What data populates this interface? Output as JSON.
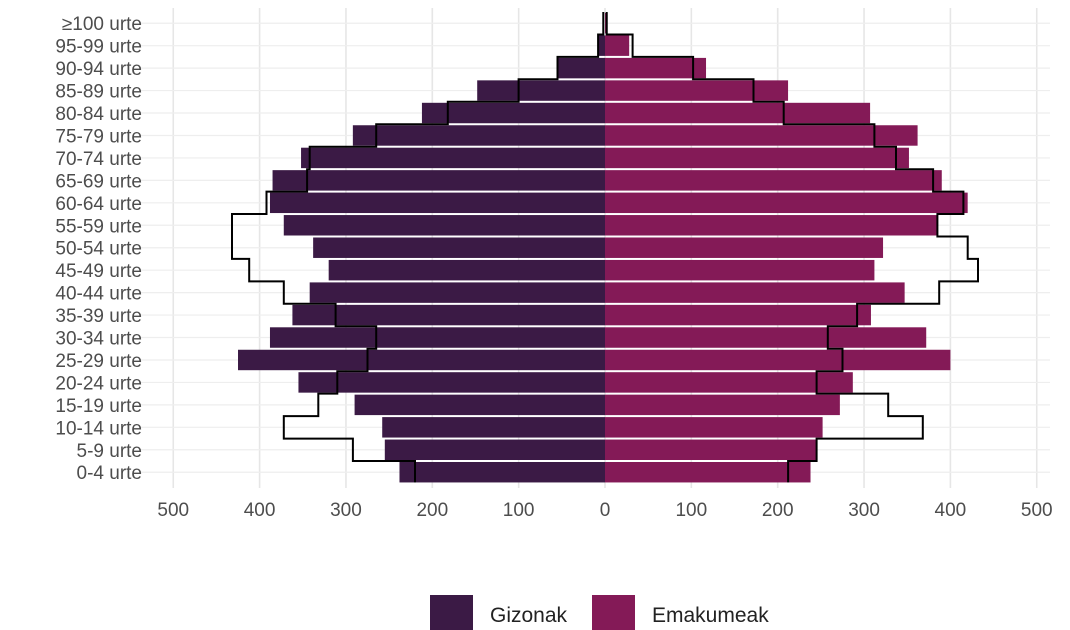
{
  "chart_data": {
    "type": "bar",
    "orientation": "horizontal",
    "style": "population-pyramid",
    "categories": [
      "0-4 urte",
      "5-9 urte",
      "10-14 urte",
      "15-19 urte",
      "20-24 urte",
      "25-29 urte",
      "30-34 urte",
      "35-39 urte",
      "40-44 urte",
      "45-49 urte",
      "50-54 urte",
      "55-59 urte",
      "60-64 urte",
      "65-69 urte",
      "70-74 urte",
      "75-79 urte",
      "80-84 urte",
      "85-89 urte",
      "90-94 urte",
      "95-99 urte",
      "≥100 urte"
    ],
    "series": [
      {
        "name": "Gizonak",
        "side": "left",
        "color": "#3b1a45",
        "values": [
          238,
          255,
          258,
          290,
          355,
          425,
          388,
          362,
          342,
          320,
          338,
          372,
          388,
          385,
          352,
          292,
          212,
          148,
          55,
          8,
          0
        ]
      },
      {
        "name": "Emakumeak",
        "side": "right",
        "color": "#841a57",
        "values": [
          238,
          245,
          252,
          272,
          287,
          400,
          372,
          308,
          347,
          312,
          322,
          385,
          420,
          390,
          352,
          362,
          307,
          212,
          117,
          28,
          3
        ]
      }
    ],
    "reference_outline": {
      "left": [
        220,
        292,
        372,
        332,
        310,
        275,
        265,
        312,
        372,
        412,
        432,
        432,
        392,
        345,
        342,
        265,
        182,
        100,
        55,
        8,
        2
      ],
      "right": [
        212,
        245,
        368,
        328,
        245,
        275,
        258,
        292,
        387,
        432,
        420,
        385,
        415,
        380,
        337,
        312,
        207,
        172,
        102,
        32,
        2
      ]
    },
    "xaxis": {
      "ticks": [
        500,
        400,
        300,
        200,
        100,
        0,
        100,
        200,
        300,
        400,
        500
      ],
      "range": [
        -500,
        500
      ],
      "absolute_labels": true
    },
    "grid": true,
    "legend": {
      "position": "bottom",
      "entries": [
        "Gizonak",
        "Emakumeak"
      ]
    },
    "title": "",
    "xlabel": "",
    "ylabel": ""
  }
}
